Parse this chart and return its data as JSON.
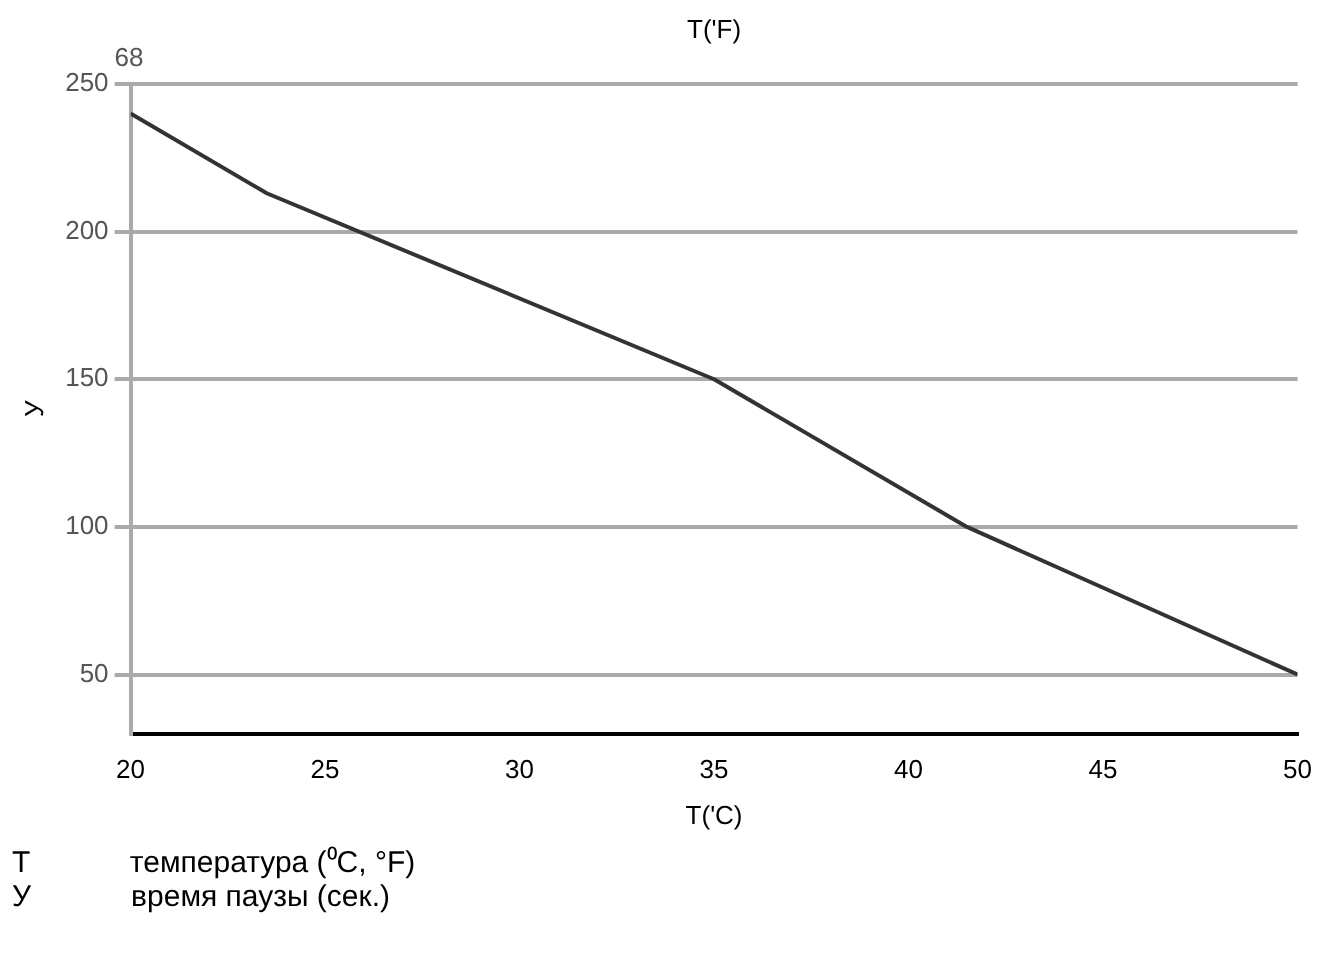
{
  "chart_data": {
    "type": "line",
    "xlabel": "T('C)",
    "x2label": "T('F)",
    "ylabel": "У",
    "x": [
      20,
      23.5,
      35,
      41.5,
      50
    ],
    "series": [
      {
        "color": "#333333",
        "values": [
          240,
          213,
          150,
          100,
          50
        ]
      }
    ],
    "xlim": [
      20,
      50
    ],
    "xticks": [
      20,
      25,
      30,
      35,
      40,
      45,
      50
    ],
    "ylim": [
      30,
      250
    ],
    "yticks": [
      50,
      100,
      150,
      200,
      250
    ],
    "grid": "y",
    "legend": false,
    "marker": "none",
    "line_style": "solid",
    "annotations": [
      "68",
      "T температура (⁰C, °F)",
      "У время паузы (сек.)"
    ]
  }
}
